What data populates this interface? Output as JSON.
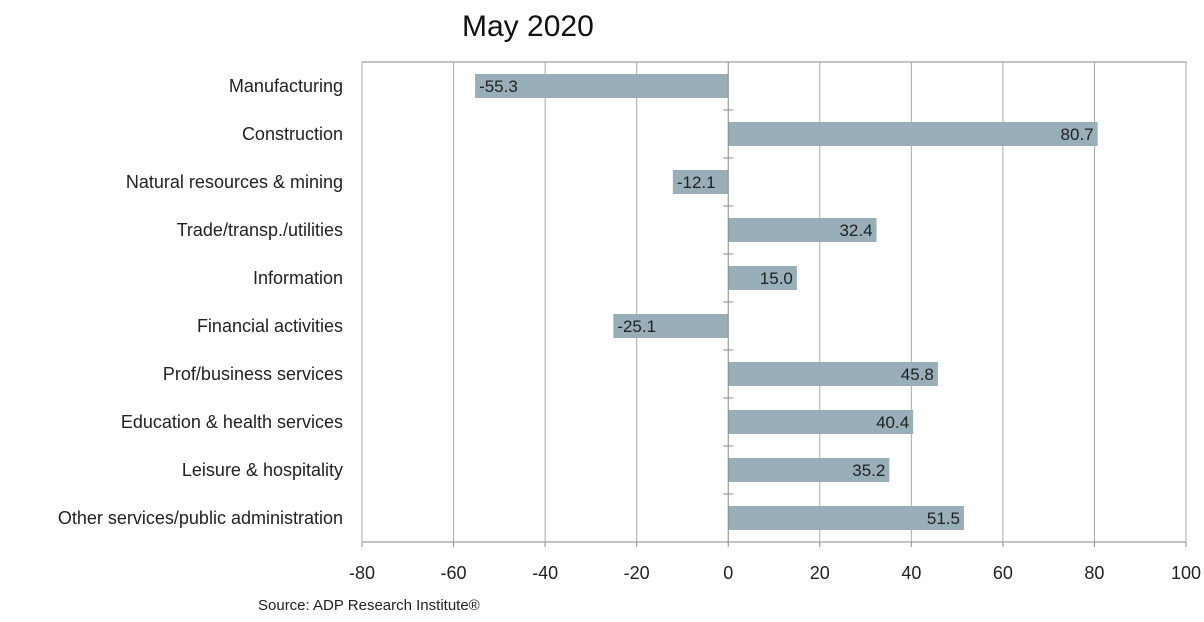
{
  "chart_data": {
    "type": "bar",
    "orientation": "horizontal",
    "title": "May 2020",
    "categories": [
      "Manufacturing",
      "Construction",
      "Natural resources & mining",
      "Trade/transp./utilities",
      "Information",
      "Financial activities",
      "Prof/business services",
      "Education & health services",
      "Leisure & hospitality",
      "Other services/public administration"
    ],
    "values": [
      -55.3,
      80.7,
      -12.1,
      32.4,
      15.0,
      -25.1,
      45.8,
      40.4,
      35.2,
      51.5
    ],
    "value_labels": [
      "-55.3",
      "80.7",
      "-12.1",
      "32.4",
      "15.0",
      "-25.1",
      "45.8",
      "40.4",
      "35.2",
      "51.5"
    ],
    "xlim": [
      -80,
      100
    ],
    "xticks": [
      -80,
      -60,
      -40,
      -20,
      0,
      20,
      40,
      60,
      80,
      100
    ],
    "xlabel": "",
    "ylabel": "",
    "grid": "vertical",
    "bar_color": "#98AEB9"
  },
  "source": "Source: ADP Research Institute®"
}
